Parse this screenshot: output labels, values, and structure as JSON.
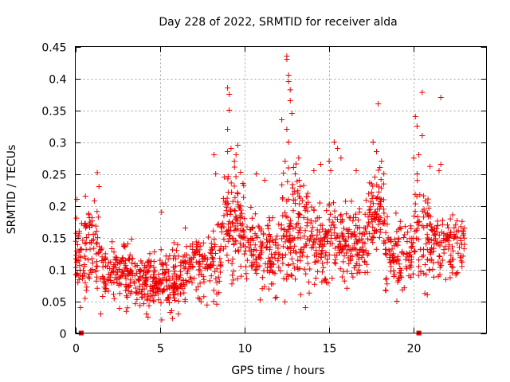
{
  "chart_data": {
    "type": "scatter",
    "title": "Day 228 of 2022, SRMTID for receiver alda",
    "xlabel": "GPS time / hours",
    "ylabel": "SRMTID / TECUs",
    "xlim": [
      0,
      24.3
    ],
    "ylim": [
      0,
      0.45
    ],
    "grid": true,
    "marker": "+",
    "color": "#ee0000",
    "x_ticks": [
      0,
      5,
      10,
      15,
      20
    ],
    "x_tick_labels": [
      "0",
      "5",
      "10",
      "15",
      "20"
    ],
    "y_ticks": [
      0,
      0.05,
      0.1,
      0.15,
      0.2,
      0.25,
      0.3,
      0.35,
      0.4,
      0.45
    ],
    "y_tick_labels": [
      "0",
      "0.05",
      "0.1",
      "0.15",
      "0.2",
      "0.25",
      "0.3",
      "0.35",
      "0.4",
      "0.45"
    ],
    "zero_markers": [
      0.35,
      20.3
    ],
    "segments": [
      {
        "x0": 0.0,
        "x1": 1.6,
        "mean": 0.13,
        "spread": 0.045,
        "n": 110
      },
      {
        "x0": 1.6,
        "x1": 3.5,
        "mean": 0.095,
        "spread": 0.03,
        "n": 130
      },
      {
        "x0": 3.5,
        "x1": 4.9,
        "mean": 0.08,
        "spread": 0.028,
        "n": 110
      },
      {
        "x0": 4.9,
        "x1": 6.5,
        "mean": 0.085,
        "spread": 0.035,
        "n": 120
      },
      {
        "x0": 6.5,
        "x1": 8.6,
        "mean": 0.11,
        "spread": 0.035,
        "n": 130
      },
      {
        "x0": 8.6,
        "x1": 10.0,
        "mean": 0.17,
        "spread": 0.05,
        "n": 120
      },
      {
        "x0": 10.0,
        "x1": 12.2,
        "mean": 0.13,
        "spread": 0.04,
        "n": 140
      },
      {
        "x0": 12.2,
        "x1": 13.5,
        "mean": 0.16,
        "spread": 0.06,
        "n": 110
      },
      {
        "x0": 13.5,
        "x1": 15.5,
        "mean": 0.15,
        "spread": 0.05,
        "n": 140
      },
      {
        "x0": 15.5,
        "x1": 17.3,
        "mean": 0.14,
        "spread": 0.04,
        "n": 130
      },
      {
        "x0": 17.3,
        "x1": 18.3,
        "mean": 0.19,
        "spread": 0.04,
        "n": 80
      },
      {
        "x0": 18.3,
        "x1": 20.0,
        "mean": 0.12,
        "spread": 0.035,
        "n": 110
      },
      {
        "x0": 20.0,
        "x1": 21.0,
        "mean": 0.16,
        "spread": 0.05,
        "n": 70
      },
      {
        "x0": 21.0,
        "x1": 23.0,
        "mean": 0.14,
        "spread": 0.035,
        "n": 120
      }
    ],
    "outliers": [
      {
        "x": 12.5,
        "y": 0.435
      },
      {
        "x": 12.5,
        "y": 0.43
      },
      {
        "x": 12.6,
        "y": 0.405
      },
      {
        "x": 12.6,
        "y": 0.395
      },
      {
        "x": 12.7,
        "y": 0.382
      },
      {
        "x": 12.7,
        "y": 0.365
      },
      {
        "x": 12.8,
        "y": 0.345
      },
      {
        "x": 12.5,
        "y": 0.32
      },
      {
        "x": 12.6,
        "y": 0.3
      },
      {
        "x": 12.4,
        "y": 0.27
      },
      {
        "x": 12.9,
        "y": 0.26
      },
      {
        "x": 12.2,
        "y": 0.335
      },
      {
        "x": 9.0,
        "y": 0.385
      },
      {
        "x": 9.1,
        "y": 0.375
      },
      {
        "x": 9.1,
        "y": 0.35
      },
      {
        "x": 9.0,
        "y": 0.32
      },
      {
        "x": 9.2,
        "y": 0.29
      },
      {
        "x": 9.0,
        "y": 0.285
      },
      {
        "x": 9.6,
        "y": 0.295
      },
      {
        "x": 9.5,
        "y": 0.28
      },
      {
        "x": 9.4,
        "y": 0.27
      },
      {
        "x": 8.2,
        "y": 0.28
      },
      {
        "x": 8.3,
        "y": 0.25
      },
      {
        "x": 8.8,
        "y": 0.245
      },
      {
        "x": 17.9,
        "y": 0.36
      },
      {
        "x": 18.1,
        "y": 0.27
      },
      {
        "x": 18.0,
        "y": 0.26
      },
      {
        "x": 17.7,
        "y": 0.245
      },
      {
        "x": 17.8,
        "y": 0.285
      },
      {
        "x": 17.6,
        "y": 0.3
      },
      {
        "x": 20.5,
        "y": 0.378
      },
      {
        "x": 20.1,
        "y": 0.34
      },
      {
        "x": 20.2,
        "y": 0.325
      },
      {
        "x": 20.5,
        "y": 0.31
      },
      {
        "x": 20.0,
        "y": 0.275
      },
      {
        "x": 20.3,
        "y": 0.28
      },
      {
        "x": 20.2,
        "y": 0.25
      },
      {
        "x": 21.6,
        "y": 0.37
      },
      {
        "x": 21.6,
        "y": 0.265
      },
      {
        "x": 21.5,
        "y": 0.255
      },
      {
        "x": 15.3,
        "y": 0.3
      },
      {
        "x": 15.5,
        "y": 0.29
      },
      {
        "x": 15.0,
        "y": 0.27
      },
      {
        "x": 15.7,
        "y": 0.275
      },
      {
        "x": 14.5,
        "y": 0.265
      },
      {
        "x": 15.1,
        "y": 0.255
      },
      {
        "x": 13.2,
        "y": 0.275
      },
      {
        "x": 13.0,
        "y": 0.25
      },
      {
        "x": 14.1,
        "y": 0.255
      },
      {
        "x": 16.6,
        "y": 0.255
      },
      {
        "x": 10.7,
        "y": 0.25
      },
      {
        "x": 11.2,
        "y": 0.24
      },
      {
        "x": 1.3,
        "y": 0.252
      },
      {
        "x": 1.4,
        "y": 0.23
      },
      {
        "x": 0.1,
        "y": 0.21
      },
      {
        "x": 0.6,
        "y": 0.215
      },
      {
        "x": 5.1,
        "y": 0.19
      },
      {
        "x": 6.5,
        "y": 0.165
      },
      {
        "x": 0.3,
        "y": 0.04
      },
      {
        "x": 1.5,
        "y": 0.03
      },
      {
        "x": 4.3,
        "y": 0.025
      },
      {
        "x": 4.2,
        "y": 0.03
      },
      {
        "x": 5.7,
        "y": 0.035
      },
      {
        "x": 13.6,
        "y": 0.04
      },
      {
        "x": 19.0,
        "y": 0.05
      },
      {
        "x": 20.8,
        "y": 0.06
      }
    ]
  }
}
